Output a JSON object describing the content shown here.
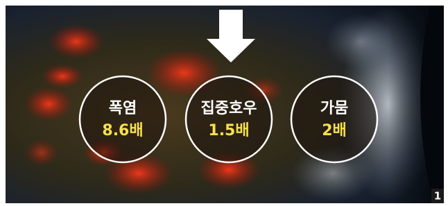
{
  "circles": [
    {
      "label": "폭염",
      "value": "8.6배"
    },
    {
      "label": "집중호우",
      "value": "1.5배"
    },
    {
      "label": "가뭄",
      "value": "2배"
    }
  ],
  "badge": "1"
}
